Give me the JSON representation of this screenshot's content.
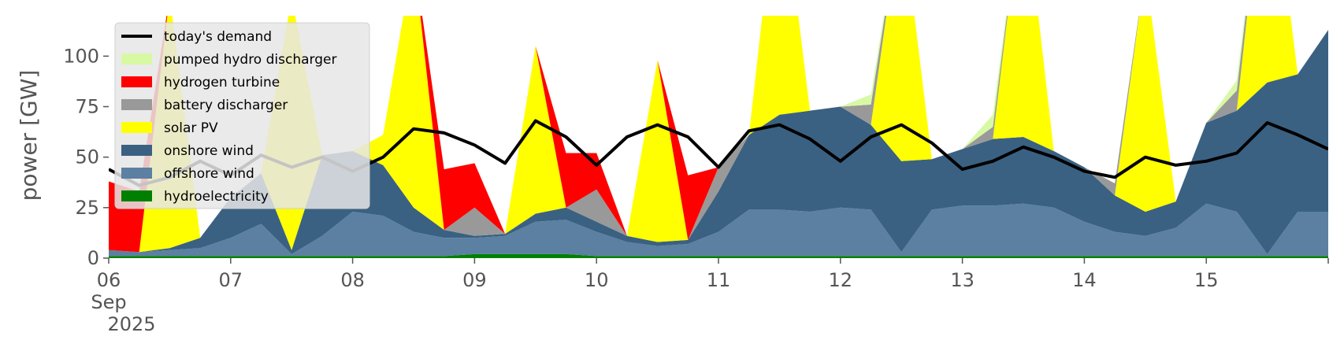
{
  "chart_data": {
    "type": "area",
    "ylabel": "power [GW]",
    "ylim": [
      0,
      120
    ],
    "yticks": [
      0,
      25,
      50,
      75,
      100
    ],
    "xlim": [
      "2025-09-06",
      "2025-09-16"
    ],
    "xticks": [
      "06",
      "07",
      "08",
      "09",
      "10",
      "11",
      "12",
      "13",
      "14",
      "15"
    ],
    "xtick_month": "Sep",
    "xtick_year": "2025",
    "grid": false,
    "legend_position": "top-left",
    "x": [
      "2025-09-06 00:00",
      "2025-09-06 06:00",
      "2025-09-06 12:00",
      "2025-09-06 18:00",
      "2025-09-07 00:00",
      "2025-09-07 06:00",
      "2025-09-07 12:00",
      "2025-09-07 18:00",
      "2025-09-08 00:00",
      "2025-09-08 06:00",
      "2025-09-08 12:00",
      "2025-09-08 18:00",
      "2025-09-09 00:00",
      "2025-09-09 06:00",
      "2025-09-09 12:00",
      "2025-09-09 18:00",
      "2025-09-10 00:00",
      "2025-09-10 06:00",
      "2025-09-10 12:00",
      "2025-09-10 18:00",
      "2025-09-11 00:00",
      "2025-09-11 06:00",
      "2025-09-11 12:00",
      "2025-09-11 18:00",
      "2025-09-12 00:00",
      "2025-09-12 06:00",
      "2025-09-12 12:00",
      "2025-09-12 18:00",
      "2025-09-13 00:00",
      "2025-09-13 06:00",
      "2025-09-13 12:00",
      "2025-09-13 18:00",
      "2025-09-14 00:00",
      "2025-09-14 06:00",
      "2025-09-14 12:00",
      "2025-09-14 18:00",
      "2025-09-15 00:00",
      "2025-09-15 06:00",
      "2025-09-15 12:00",
      "2025-09-15 18:00",
      "2025-09-16 00:00"
    ],
    "series": [
      {
        "name": "hydroelectricity",
        "color": "#008000",
        "values": [
          1,
          1,
          1,
          1,
          1,
          1,
          1,
          1,
          1,
          1,
          1,
          1,
          2,
          2,
          2,
          2,
          1,
          1,
          1,
          1,
          1,
          1,
          1,
          1,
          1,
          1,
          1,
          1,
          1,
          1,
          1,
          1,
          1,
          1,
          1,
          1,
          1,
          1,
          1,
          1,
          1
        ]
      },
      {
        "name": "offshore wind",
        "color": "#5b80a1",
        "values": [
          3,
          2,
          3,
          4,
          9,
          16,
          1,
          10,
          22,
          20,
          12,
          9,
          8,
          9,
          16,
          17,
          12,
          7,
          5,
          6,
          12,
          23,
          23,
          22,
          24,
          23,
          2,
          23,
          25,
          25,
          26,
          24,
          17,
          12,
          10,
          14,
          26,
          22,
          1,
          22,
          22
        ]
      },
      {
        "name": "onshore wind",
        "color": "#3a6182",
        "values": [
          0,
          0,
          1,
          5,
          20,
          25,
          2,
          40,
          30,
          25,
          12,
          4,
          1,
          1,
          4,
          6,
          5,
          3,
          2,
          2,
          20,
          37,
          47,
          50,
          50,
          42,
          45,
          25,
          28,
          33,
          33,
          28,
          27,
          18,
          12,
          13,
          40,
          50,
          85,
          68,
          90
        ]
      },
      {
        "name": "solar PV",
        "color": "#ffff00",
        "values": [
          0,
          0,
          125,
          0,
          0,
          0,
          125,
          0,
          0,
          15,
          125,
          0,
          0,
          0,
          83,
          0,
          0,
          0,
          90,
          0,
          0,
          0,
          125,
          0,
          0,
          0,
          125,
          0,
          0,
          0,
          125,
          0,
          0,
          0,
          120,
          0,
          0,
          0,
          125,
          0,
          0
        ]
      },
      {
        "name": "battery discharger",
        "color": "#999999",
        "values": [
          0,
          0,
          0,
          0,
          0,
          0,
          0,
          0,
          0,
          0,
          0,
          0,
          14,
          0,
          0,
          0,
          16,
          0,
          0,
          0,
          12,
          0,
          0,
          0,
          0,
          10,
          0,
          0,
          0,
          6,
          0,
          0,
          0,
          6,
          0,
          0,
          0,
          10,
          0,
          0,
          0
        ]
      },
      {
        "name": "hydrogen turbine",
        "color": "#ff0000",
        "values": [
          34,
          30,
          0,
          0,
          0,
          0,
          0,
          0,
          0,
          0,
          0,
          30,
          22,
          0,
          0,
          27,
          18,
          0,
          0,
          32,
          0,
          0,
          0,
          0,
          0,
          0,
          0,
          0,
          0,
          0,
          0,
          0,
          0,
          0,
          0,
          0,
          0,
          0,
          0,
          0,
          0
        ]
      },
      {
        "name": "pumped hydro discharger",
        "color": "#d8f9a4",
        "values": [
          0,
          0,
          0,
          0,
          0,
          0,
          0,
          0,
          0,
          0,
          0,
          0,
          0,
          0,
          0,
          0,
          0,
          0,
          0,
          0,
          0,
          0,
          0,
          0,
          0,
          5,
          0,
          0,
          0,
          6,
          0,
          0,
          0,
          0,
          0,
          0,
          0,
          5,
          0,
          0,
          0
        ]
      }
    ],
    "demand": {
      "name": "today's demand",
      "color": "#000000",
      "values": [
        44,
        36,
        40,
        48,
        41,
        51,
        45,
        50,
        43,
        50,
        64,
        62,
        56,
        47,
        68,
        60,
        46,
        60,
        66,
        60,
        45,
        63,
        66,
        59,
        48,
        60,
        66,
        57,
        44,
        48,
        55,
        50,
        43,
        40,
        50,
        46,
        48,
        52,
        67,
        61,
        54
      ]
    },
    "legend": [
      {
        "label": "today's demand",
        "color": "#000000",
        "kind": "line"
      },
      {
        "label": "pumped hydro discharger",
        "color": "#d8f9a4",
        "kind": "patch"
      },
      {
        "label": "hydrogen turbine",
        "color": "#ff0000",
        "kind": "patch"
      },
      {
        "label": "battery discharger",
        "color": "#999999",
        "kind": "patch"
      },
      {
        "label": "solar PV",
        "color": "#ffff00",
        "kind": "patch"
      },
      {
        "label": "onshore wind",
        "color": "#3a6182",
        "kind": "patch"
      },
      {
        "label": "offshore wind",
        "color": "#5b80a1",
        "kind": "patch"
      },
      {
        "label": "hydroelectricity",
        "color": "#008000",
        "kind": "patch"
      }
    ]
  }
}
